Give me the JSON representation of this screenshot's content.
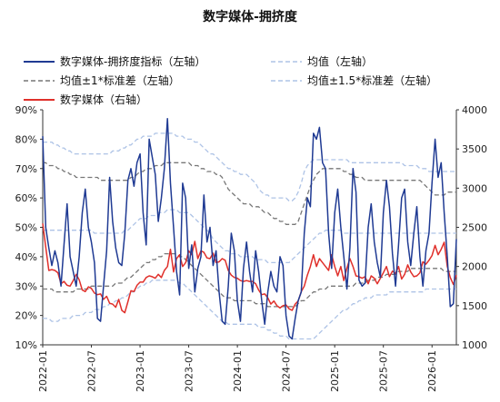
{
  "chart_data": {
    "type": "line",
    "title": "数字媒体-拥挤度",
    "x_tick_labels": [
      "2022-01",
      "2022-07",
      "2023-01",
      "2023-07",
      "2024-01",
      "2024-07",
      "2025-01",
      "2025-07",
      "2026-01"
    ],
    "x_start": "2022-01",
    "x_end": "2026-04",
    "left_axis": {
      "ticks": [
        "10%",
        "20%",
        "30%",
        "40%",
        "50%",
        "60%",
        "70%",
        "80%",
        "90%"
      ],
      "ylim": [
        0.1,
        0.9
      ],
      "unit": "%"
    },
    "right_axis": {
      "ticks": [
        "1000",
        "1500",
        "2000",
        "2500",
        "3000",
        "3500",
        "4000"
      ],
      "ylim": [
        1000,
        4000
      ]
    },
    "legend": [
      {
        "label": "数字媒体-拥挤度指标（左轴）",
        "color": "#1f3a93",
        "style": "solid"
      },
      {
        "label": "均值（左轴）",
        "color": "#aec3e6",
        "style": "dashed"
      },
      {
        "label": "均值±1*标准差（左轴）",
        "color": "#777777",
        "style": "dashed"
      },
      {
        "label": "均值±1.5*标准差（左轴）",
        "color": "#aec3e6",
        "style": "dashed"
      },
      {
        "label": "数字媒体（右轴）",
        "color": "#e0302b",
        "style": "solid"
      }
    ],
    "series": [
      {
        "name": "数字媒体-拥挤度指标（左轴）",
        "axis": "left",
        "color": "#1f3a93",
        "values": [
          0.81,
          0.5,
          0.43,
          0.37,
          0.42,
          0.38,
          0.3,
          0.44,
          0.58,
          0.4,
          0.35,
          0.3,
          0.4,
          0.55,
          0.63,
          0.5,
          0.45,
          0.38,
          0.19,
          0.18,
          0.3,
          0.42,
          0.67,
          0.52,
          0.43,
          0.38,
          0.37,
          0.48,
          0.66,
          0.7,
          0.64,
          0.72,
          0.75,
          0.55,
          0.44,
          0.8,
          0.74,
          0.68,
          0.52,
          0.6,
          0.7,
          0.87,
          0.65,
          0.5,
          0.35,
          0.27,
          0.65,
          0.6,
          0.36,
          0.44,
          0.28,
          0.36,
          0.4,
          0.61,
          0.45,
          0.5,
          0.37,
          0.42,
          0.28,
          0.18,
          0.17,
          0.3,
          0.48,
          0.42,
          0.25,
          0.18,
          0.36,
          0.45,
          0.35,
          0.28,
          0.42,
          0.35,
          0.25,
          0.17,
          0.28,
          0.35,
          0.3,
          0.28,
          0.4,
          0.37,
          0.2,
          0.13,
          0.12,
          0.19,
          0.25,
          0.28,
          0.48,
          0.6,
          0.57,
          0.82,
          0.8,
          0.84,
          0.72,
          0.7,
          0.48,
          0.36,
          0.55,
          0.63,
          0.5,
          0.4,
          0.29,
          0.43,
          0.7,
          0.62,
          0.32,
          0.3,
          0.31,
          0.5,
          0.58,
          0.45,
          0.38,
          0.33,
          0.55,
          0.66,
          0.57,
          0.41,
          0.3,
          0.44,
          0.6,
          0.63,
          0.45,
          0.37,
          0.48,
          0.57,
          0.4,
          0.3,
          0.42,
          0.48,
          0.65,
          0.8,
          0.67,
          0.72,
          0.55,
          0.4,
          0.23,
          0.24,
          0.46
        ]
      },
      {
        "name": "均值（左轴）",
        "axis": "left",
        "color": "#aec3e6",
        "values": [
          0.49,
          0.49,
          0.49,
          0.49,
          0.49,
          0.49,
          0.49,
          0.49,
          0.49,
          0.49,
          0.49,
          0.49,
          0.49,
          0.49,
          0.49,
          0.49,
          0.49,
          0.48,
          0.48,
          0.48,
          0.48,
          0.48,
          0.48,
          0.48,
          0.48,
          0.48,
          0.48,
          0.49,
          0.49,
          0.5,
          0.51,
          0.52,
          0.53,
          0.53,
          0.53,
          0.54,
          0.54,
          0.54,
          0.55,
          0.55,
          0.55,
          0.56,
          0.56,
          0.56,
          0.56,
          0.55,
          0.55,
          0.55,
          0.55,
          0.54,
          0.53,
          0.52,
          0.51,
          0.5,
          0.49,
          0.48,
          0.46,
          0.45,
          0.44,
          0.43,
          0.42,
          0.42,
          0.41,
          0.41,
          0.41,
          0.4,
          0.4,
          0.4,
          0.4,
          0.4,
          0.39,
          0.39,
          0.39,
          0.39,
          0.38,
          0.38,
          0.38,
          0.38,
          0.38,
          0.38,
          0.38,
          0.38,
          0.39,
          0.4,
          0.41,
          0.42,
          0.43,
          0.44,
          0.45,
          0.46,
          0.47,
          0.48,
          0.48,
          0.49,
          0.49,
          0.49,
          0.49,
          0.49,
          0.49,
          0.48,
          0.48,
          0.48,
          0.48,
          0.48,
          0.48,
          0.48,
          0.48,
          0.48,
          0.48,
          0.48,
          0.48,
          0.48,
          0.48,
          0.48,
          0.48,
          0.48,
          0.48,
          0.48,
          0.48,
          0.48,
          0.48,
          0.48,
          0.48,
          0.48,
          0.48,
          0.48,
          0.48,
          0.48,
          0.48,
          0.48,
          0.48,
          0.48,
          0.48,
          0.48,
          0.48,
          0.48,
          0.48
        ]
      },
      {
        "name": "均值+1*标准差（左轴）",
        "axis": "left",
        "color": "#777777",
        "values": [
          0.72,
          0.72,
          0.71,
          0.71,
          0.71,
          0.7,
          0.7,
          0.69,
          0.69,
          0.68,
          0.68,
          0.67,
          0.67,
          0.67,
          0.67,
          0.67,
          0.67,
          0.67,
          0.67,
          0.66,
          0.66,
          0.66,
          0.66,
          0.66,
          0.66,
          0.66,
          0.66,
          0.66,
          0.66,
          0.67,
          0.67,
          0.68,
          0.69,
          0.69,
          0.7,
          0.7,
          0.7,
          0.71,
          0.71,
          0.71,
          0.72,
          0.72,
          0.72,
          0.72,
          0.72,
          0.72,
          0.72,
          0.72,
          0.72,
          0.71,
          0.71,
          0.71,
          0.7,
          0.7,
          0.69,
          0.69,
          0.69,
          0.68,
          0.68,
          0.67,
          0.65,
          0.63,
          0.62,
          0.61,
          0.6,
          0.59,
          0.58,
          0.58,
          0.58,
          0.57,
          0.57,
          0.57,
          0.56,
          0.55,
          0.55,
          0.54,
          0.53,
          0.53,
          0.52,
          0.52,
          0.51,
          0.51,
          0.51,
          0.51,
          0.52,
          0.55,
          0.58,
          0.61,
          0.64,
          0.66,
          0.68,
          0.69,
          0.7,
          0.7,
          0.7,
          0.7,
          0.7,
          0.7,
          0.7,
          0.69,
          0.69,
          0.68,
          0.68,
          0.67,
          0.67,
          0.67,
          0.66,
          0.66,
          0.66,
          0.66,
          0.66,
          0.66,
          0.66,
          0.66,
          0.66,
          0.66,
          0.66,
          0.66,
          0.66,
          0.66,
          0.66,
          0.66,
          0.66,
          0.66,
          0.66,
          0.65,
          0.64,
          0.63,
          0.62,
          0.61,
          0.61,
          0.61,
          0.61,
          0.62,
          0.62,
          0.62,
          0.62
        ]
      },
      {
        "name": "均值-1*标准差（左轴）",
        "axis": "left",
        "color": "#777777",
        "values": [
          0.29,
          0.29,
          0.29,
          0.29,
          0.28,
          0.28,
          0.28,
          0.28,
          0.28,
          0.28,
          0.28,
          0.29,
          0.29,
          0.29,
          0.29,
          0.29,
          0.3,
          0.3,
          0.3,
          0.3,
          0.3,
          0.3,
          0.3,
          0.3,
          0.31,
          0.31,
          0.31,
          0.32,
          0.33,
          0.33,
          0.34,
          0.35,
          0.36,
          0.37,
          0.38,
          0.38,
          0.39,
          0.39,
          0.4,
          0.4,
          0.41,
          0.41,
          0.41,
          0.41,
          0.41,
          0.4,
          0.4,
          0.39,
          0.38,
          0.37,
          0.36,
          0.35,
          0.34,
          0.33,
          0.32,
          0.31,
          0.3,
          0.29,
          0.28,
          0.27,
          0.26,
          0.26,
          0.26,
          0.25,
          0.25,
          0.25,
          0.25,
          0.25,
          0.25,
          0.25,
          0.24,
          0.24,
          0.24,
          0.24,
          0.23,
          0.23,
          0.23,
          0.23,
          0.23,
          0.23,
          0.23,
          0.23,
          0.23,
          0.23,
          0.24,
          0.25,
          0.25,
          0.26,
          0.27,
          0.28,
          0.28,
          0.29,
          0.29,
          0.29,
          0.3,
          0.3,
          0.3,
          0.3,
          0.3,
          0.3,
          0.3,
          0.3,
          0.3,
          0.31,
          0.31,
          0.31,
          0.31,
          0.32,
          0.32,
          0.32,
          0.33,
          0.33,
          0.33,
          0.34,
          0.34,
          0.34,
          0.34,
          0.35,
          0.35,
          0.35,
          0.35,
          0.36,
          0.36,
          0.36,
          0.36,
          0.36,
          0.36,
          0.36,
          0.36,
          0.36,
          0.36,
          0.36,
          0.35,
          0.35,
          0.35,
          0.35,
          0.35
        ]
      },
      {
        "name": "均值+1.5*标准差（左轴）",
        "axis": "left",
        "color": "#aec3e6",
        "values": [
          0.79,
          0.79,
          0.79,
          0.79,
          0.78,
          0.78,
          0.77,
          0.77,
          0.76,
          0.76,
          0.75,
          0.75,
          0.75,
          0.75,
          0.75,
          0.75,
          0.75,
          0.75,
          0.75,
          0.75,
          0.75,
          0.75,
          0.75,
          0.76,
          0.76,
          0.76,
          0.77,
          0.77,
          0.78,
          0.78,
          0.79,
          0.8,
          0.8,
          0.81,
          0.81,
          0.81,
          0.81,
          0.82,
          0.82,
          0.82,
          0.82,
          0.82,
          0.82,
          0.82,
          0.81,
          0.81,
          0.81,
          0.8,
          0.8,
          0.8,
          0.79,
          0.79,
          0.78,
          0.77,
          0.76,
          0.75,
          0.75,
          0.74,
          0.73,
          0.72,
          0.71,
          0.7,
          0.7,
          0.69,
          0.69,
          0.68,
          0.68,
          0.68,
          0.67,
          0.66,
          0.65,
          0.63,
          0.62,
          0.61,
          0.61,
          0.6,
          0.6,
          0.6,
          0.6,
          0.6,
          0.6,
          0.59,
          0.59,
          0.6,
          0.62,
          0.65,
          0.69,
          0.71,
          0.72,
          0.73,
          0.73,
          0.73,
          0.73,
          0.73,
          0.73,
          0.73,
          0.73,
          0.73,
          0.73,
          0.73,
          0.73,
          0.72,
          0.72,
          0.72,
          0.72,
          0.72,
          0.72,
          0.72,
          0.72,
          0.72,
          0.72,
          0.72,
          0.72,
          0.72,
          0.72,
          0.72,
          0.72,
          0.72,
          0.72,
          0.71,
          0.71,
          0.71,
          0.71,
          0.71,
          0.7,
          0.7,
          0.7,
          0.69,
          0.69,
          0.69,
          0.69,
          0.69,
          0.69,
          0.69,
          0.69,
          0.69,
          0.69
        ]
      },
      {
        "name": "均值-1.5*标准差（左轴）",
        "axis": "left",
        "color": "#aec3e6",
        "values": [
          0.19,
          0.19,
          0.19,
          0.18,
          0.18,
          0.18,
          0.19,
          0.19,
          0.19,
          0.19,
          0.2,
          0.2,
          0.2,
          0.2,
          0.21,
          0.21,
          0.21,
          0.22,
          0.22,
          0.22,
          0.23,
          0.23,
          0.24,
          0.24,
          0.25,
          0.25,
          0.26,
          0.26,
          0.27,
          0.28,
          0.28,
          0.29,
          0.3,
          0.3,
          0.31,
          0.31,
          0.32,
          0.32,
          0.32,
          0.32,
          0.32,
          0.32,
          0.32,
          0.32,
          0.32,
          0.31,
          0.31,
          0.3,
          0.29,
          0.28,
          0.27,
          0.26,
          0.25,
          0.24,
          0.23,
          0.22,
          0.21,
          0.2,
          0.19,
          0.18,
          0.18,
          0.17,
          0.17,
          0.17,
          0.17,
          0.17,
          0.17,
          0.17,
          0.17,
          0.17,
          0.17,
          0.16,
          0.16,
          0.16,
          0.15,
          0.15,
          0.14,
          0.14,
          0.13,
          0.13,
          0.13,
          0.12,
          0.12,
          0.12,
          0.12,
          0.12,
          0.12,
          0.12,
          0.12,
          0.12,
          0.13,
          0.14,
          0.15,
          0.16,
          0.17,
          0.18,
          0.19,
          0.2,
          0.21,
          0.22,
          0.22,
          0.23,
          0.24,
          0.24,
          0.25,
          0.25,
          0.26,
          0.26,
          0.26,
          0.27,
          0.27,
          0.27,
          0.27,
          0.27,
          0.28,
          0.28,
          0.28,
          0.28,
          0.28,
          0.28,
          0.28,
          0.28,
          0.28,
          0.28,
          0.28,
          0.28,
          0.29,
          0.29,
          0.29,
          0.29,
          0.29,
          0.29,
          0.29,
          0.29,
          0.29,
          0.29,
          0.29
        ]
      },
      {
        "name": "数字媒体（右轴）",
        "axis": "right",
        "color": "#e0302b",
        "values": [
          2550,
          2250,
          1950,
          1960,
          1950,
          1920,
          1780,
          1810,
          1760,
          1750,
          1820,
          1900,
          1830,
          1700,
          1680,
          1740,
          1720,
          1660,
          1640,
          1650,
          1580,
          1620,
          1530,
          1520,
          1480,
          1580,
          1440,
          1410,
          1550,
          1690,
          1680,
          1760,
          1800,
          1800,
          1860,
          1880,
          1870,
          1850,
          1900,
          1860,
          1950,
          2000,
          2220,
          1930,
          2100,
          2150,
          2000,
          2050,
          2200,
          2150,
          2320,
          2100,
          2200,
          2180,
          2110,
          2100,
          2170,
          2050,
          2060,
          2100,
          2080,
          1950,
          1890,
          1860,
          1850,
          1820,
          1810,
          1820,
          1810,
          1810,
          1780,
          1700,
          1640,
          1650,
          1600,
          1520,
          1560,
          1500,
          1470,
          1500,
          1510,
          1460,
          1440,
          1520,
          1560,
          1680,
          1750,
          1890,
          2000,
          2150,
          2000,
          2100,
          2050,
          2000,
          1950,
          2150,
          2000,
          1880,
          2000,
          1820,
          1980,
          2100,
          2000,
          1880,
          1870,
          1850,
          1870,
          1780,
          1880,
          1850,
          1780,
          1850,
          1920,
          2000,
          1870,
          1940,
          1910,
          2000,
          1840,
          1900,
          2020,
          1930,
          1870,
          1880,
          1920,
          2060,
          2030,
          2080,
          2140,
          2270,
          2150,
          2220,
          2310,
          2000,
          1860,
          1770,
          1890
        ]
      }
    ]
  }
}
